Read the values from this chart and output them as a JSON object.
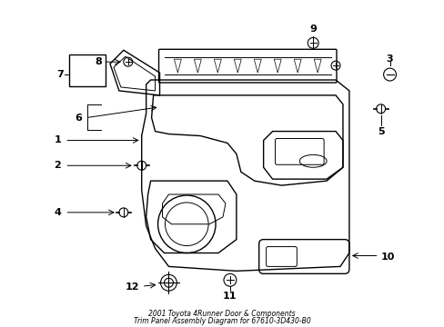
{
  "bg_color": "#ffffff",
  "line_color": "#000000",
  "title_line1": "2001 Toyota 4Runner Door & Components",
  "title_line2": "Trim Panel Assembly Diagram for 67610-3D430-B0"
}
